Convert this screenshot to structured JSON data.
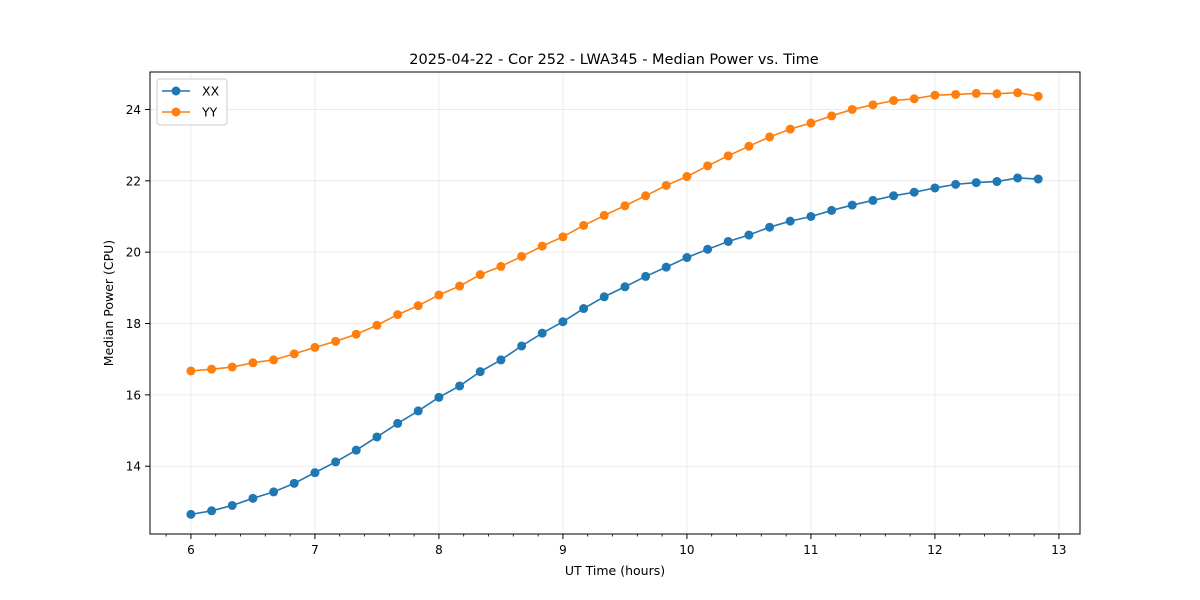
{
  "chart_data": {
    "type": "line",
    "title": "2025-04-22 - Cor 252 - LWA345 - Median Power vs. Time",
    "xlabel": "UT Time (hours)",
    "ylabel": "Median Power (CPU)",
    "xlim": [
      5.67,
      13.17
    ],
    "ylim": [
      12.1,
      25.05
    ],
    "xticks": [
      6,
      7,
      8,
      9,
      10,
      11,
      12,
      13
    ],
    "yticks": [
      14,
      16,
      18,
      20,
      22,
      24
    ],
    "x_minor_step": 0.2,
    "grid": true,
    "legend_position": "top-left",
    "x": [
      6.0,
      6.167,
      6.333,
      6.5,
      6.667,
      6.833,
      7.0,
      7.167,
      7.333,
      7.5,
      7.667,
      7.833,
      8.0,
      8.167,
      8.333,
      8.5,
      8.667,
      8.833,
      9.0,
      9.167,
      9.333,
      9.5,
      9.667,
      9.833,
      10.0,
      10.167,
      10.333,
      10.5,
      10.667,
      10.833,
      11.0,
      11.167,
      11.333,
      11.5,
      11.667,
      11.833,
      12.0,
      12.167,
      12.333,
      12.5,
      12.667,
      12.833
    ],
    "series": [
      {
        "name": "XX",
        "color": "#1f77b4",
        "values": [
          12.65,
          12.75,
          12.9,
          13.1,
          13.28,
          13.52,
          13.82,
          14.12,
          14.45,
          14.82,
          15.2,
          15.55,
          15.93,
          16.25,
          16.65,
          16.98,
          17.37,
          17.73,
          18.05,
          18.42,
          18.75,
          19.03,
          19.32,
          19.58,
          19.85,
          20.08,
          20.3,
          20.48,
          20.7,
          20.87,
          21.0,
          21.17,
          21.32,
          21.45,
          21.58,
          21.68,
          21.8,
          21.9,
          21.95,
          21.98,
          22.08,
          22.05
        ]
      },
      {
        "name": "YY",
        "color": "#ff7f0e",
        "values": [
          16.67,
          16.72,
          16.78,
          16.9,
          16.98,
          17.15,
          17.33,
          17.5,
          17.7,
          17.95,
          18.25,
          18.5,
          18.8,
          19.05,
          19.37,
          19.6,
          19.88,
          20.17,
          20.43,
          20.75,
          21.03,
          21.3,
          21.58,
          21.87,
          22.12,
          22.42,
          22.7,
          22.97,
          23.23,
          23.45,
          23.62,
          23.82,
          24.0,
          24.13,
          24.25,
          24.3,
          24.4,
          24.42,
          24.45,
          24.44,
          24.47,
          24.37
        ]
      }
    ]
  }
}
